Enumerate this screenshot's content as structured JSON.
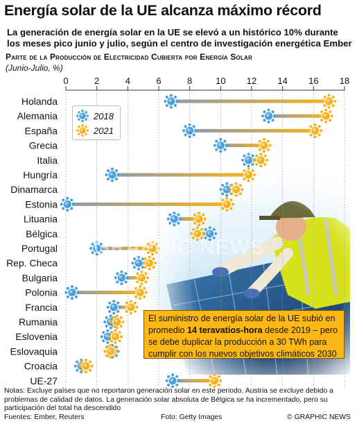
{
  "header": {
    "title": "Energía solar de la UE alcanza máximo récord",
    "subtitle": "La generación de energía solar en la UE se elevó a un histórico 10% durante los meses pico junio y julio, según el centro de investigación energética Ember",
    "chart_title": "Parte de la Producción de Electricidad Cubierta por Energía Solar",
    "chart_unit": "(Junio-Julio, %)"
  },
  "chart_data": {
    "type": "dumbbell",
    "title": "Parte de la Producción de Electricidad Cubierta por Energía Solar",
    "unit": "(Junio-Julio, %)",
    "xlim": [
      0,
      18
    ],
    "xticks": [
      0,
      2,
      4,
      6,
      8,
      10,
      12,
      14,
      16,
      18
    ],
    "xtick_labels": [
      "0",
      "2",
      "4",
      "6",
      "8",
      "10",
      "12",
      "14",
      "16",
      "18"
    ],
    "legend_position": "top-left",
    "series": [
      {
        "name": "2018",
        "color": "#4a9fdc"
      },
      {
        "name": "2021",
        "color": "#f6b21a"
      }
    ],
    "categories": [
      "Holanda",
      "Alemania",
      "España",
      "Grecia",
      "Italia",
      "Hungría",
      "Dinamarca",
      "Estonia",
      "Lituania",
      "Bélgica",
      "Portugal",
      "Rep. Checa",
      "Bulgaria",
      "Polonia",
      "Francia",
      "Rumania",
      "Eslovenia",
      "Eslovaquia",
      "Croacia",
      "UE-27"
    ],
    "values_2018": [
      6.8,
      13.1,
      8.0,
      10.0,
      11.8,
      3.0,
      10.4,
      0.1,
      7.0,
      9.3,
      2.0,
      4.7,
      3.6,
      0.4,
      3.1,
      2.9,
      2.7,
      3.0,
      1.0,
      6.9
    ],
    "values_2021": [
      17.0,
      16.8,
      16.1,
      12.8,
      12.6,
      11.8,
      11.0,
      10.4,
      8.6,
      8.5,
      5.6,
      5.4,
      4.9,
      4.8,
      4.2,
      3.3,
      3.2,
      2.9,
      1.3,
      9.6
    ]
  },
  "callout": {
    "text_before": "El suministro de energía solar de la UE subió en promedio ",
    "text_bold": "14 teravatios-hora",
    "text_after": " desde 2019 – pero se debe duplicar la producción a 30 TWh para cumplir con los nuevos objetivos climáticos 2030"
  },
  "watermark": "GRAPHIC NEWS",
  "notes": "Notas: Excluye países que no reportaron generación solar en este periodo. Austria se excluye debido a problemas de calidad de datos. La generación solar absoluta de Bélgica se ha incrementado, pero su participación del total ha descendido",
  "footer": {
    "sources": "Fuentes: Ember, Reuters",
    "photo_credit": "Foto: Getty Images",
    "brand": "© GRAPHIC NEWS"
  },
  "colors": {
    "dot_2018": "#4a9fdc",
    "dot_2021": "#f6b21a",
    "bar_gradient_start": "#9aa7b4",
    "bar_gradient_end": "#f6b21a",
    "callout_bg": "#fbb817"
  }
}
